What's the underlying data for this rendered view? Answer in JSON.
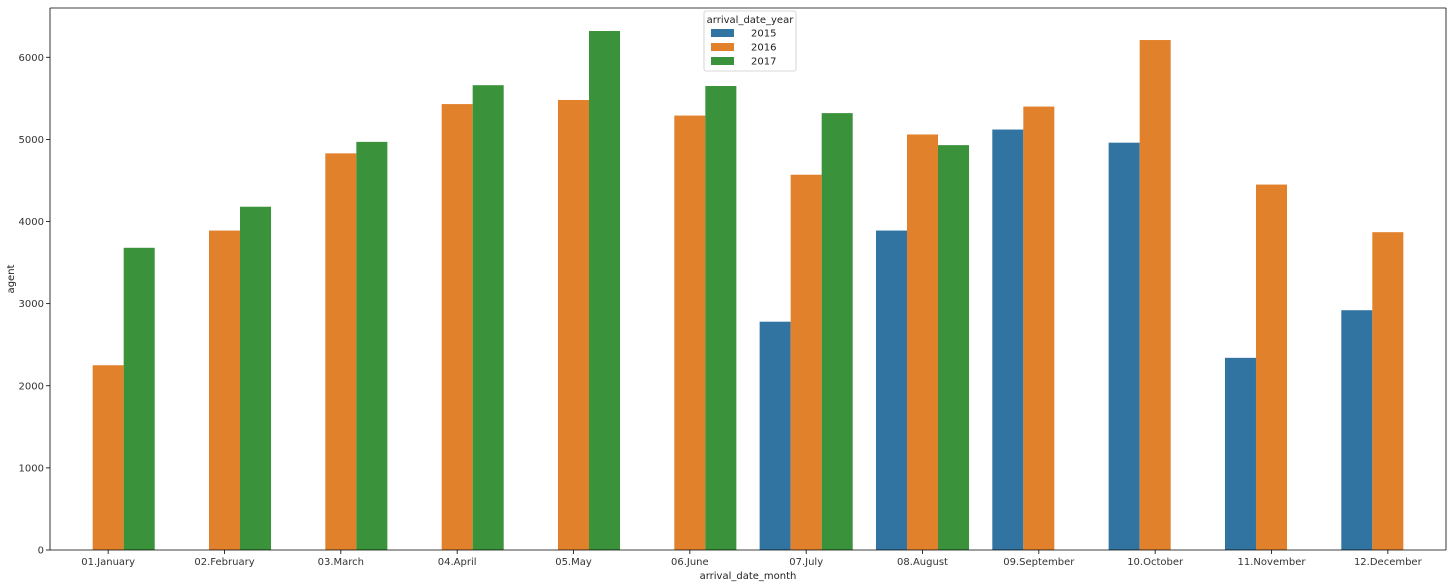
{
  "chart_data": {
    "type": "bar",
    "xlabel": "arrival_date_month",
    "ylabel": "agent",
    "ylim": [
      0,
      6600
    ],
    "yticks": [
      0,
      1000,
      2000,
      3000,
      4000,
      5000,
      6000
    ],
    "grid": false,
    "legend": {
      "title": "arrival_date_year",
      "placement": "top-center"
    },
    "categories": [
      "01.January",
      "02.February",
      "03.March",
      "04.April",
      "05.May",
      "06.June",
      "07.July",
      "08.August",
      "09.September",
      "10.October",
      "11.November",
      "12.December"
    ],
    "series": [
      {
        "name": "2015",
        "color": "#3274a1",
        "values": [
          null,
          null,
          null,
          null,
          null,
          null,
          2780,
          3890,
          5120,
          4960,
          2340,
          2920
        ]
      },
      {
        "name": "2016",
        "color": "#e1812c",
        "values": [
          2250,
          3890,
          4830,
          5430,
          5480,
          5290,
          4570,
          5060,
          5400,
          6210,
          4450,
          3870
        ]
      },
      {
        "name": "2017",
        "color": "#3a923a",
        "values": [
          3680,
          4180,
          4970,
          5660,
          6320,
          5650,
          5320,
          4930,
          null,
          null,
          null,
          null
        ]
      }
    ]
  }
}
